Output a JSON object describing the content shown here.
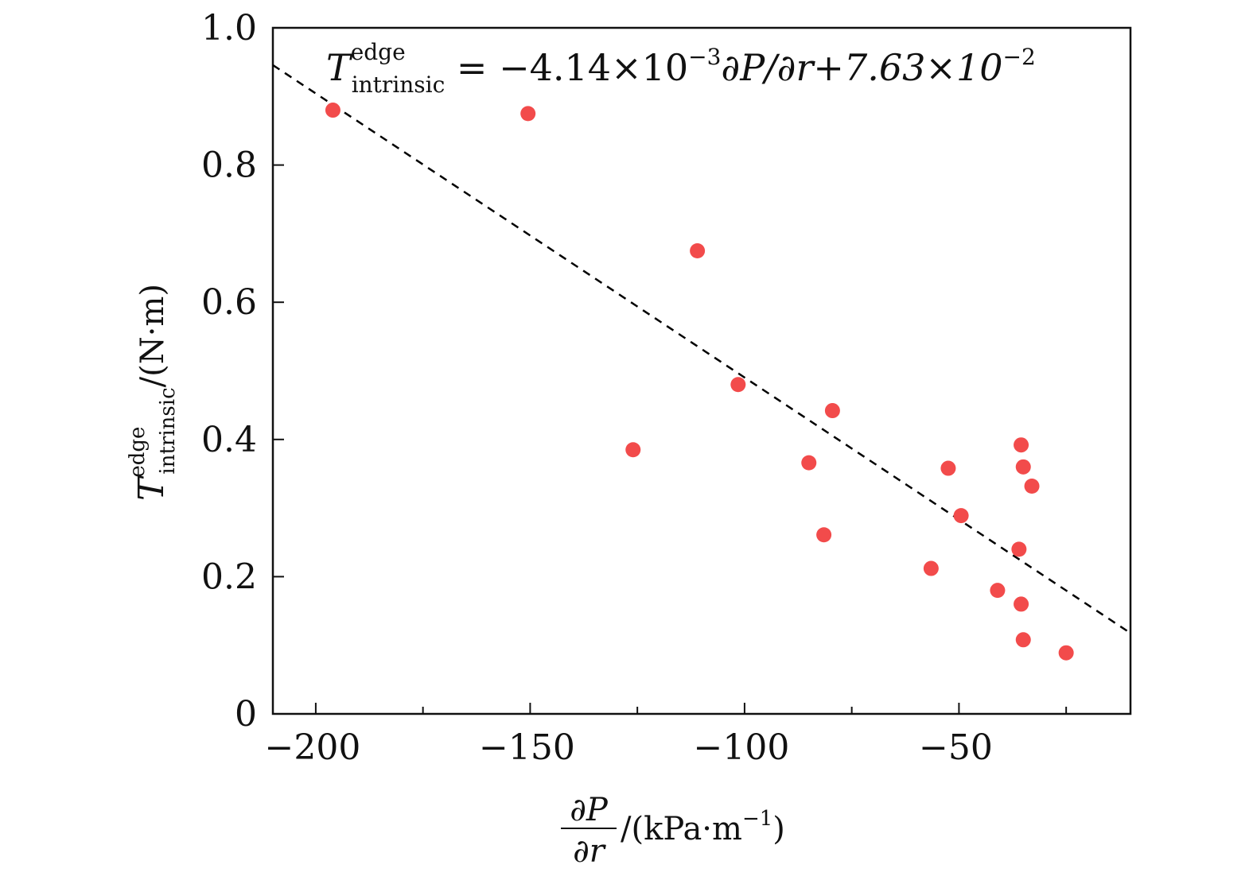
{
  "chart_data": {
    "type": "scatter",
    "title": "",
    "annotation": {
      "T": "T",
      "sup": "edge",
      "sub": "intrinsic",
      "eq_pre": " = −4.14×10",
      "eq_exp1": "−3",
      "eq_mid": "∂P/∂r+7.63×10",
      "eq_exp2": "−2"
    },
    "fit_line": {
      "slope": -0.00414,
      "intercept": 0.0763,
      "style": "dashed",
      "color": "#000000"
    },
    "xlabel": {
      "num": "∂P",
      "den": "∂r",
      "units_pre": "/(kPa·m",
      "units_exp": "−1",
      "units_post": ")"
    },
    "ylabel": {
      "T": "T",
      "sup": "edge",
      "sub": "intrinsic",
      "units": "/(N·m)"
    },
    "xlim": [
      -210,
      -10
    ],
    "ylim": [
      0,
      1.0
    ],
    "x_major_ticks": [
      -200,
      -150,
      -100,
      -50
    ],
    "x_minor_ticks": [
      -175,
      -125,
      -75,
      -25
    ],
    "x_tick_labels": [
      "−200",
      "−150",
      "−100",
      "−50"
    ],
    "y_ticks": [
      0,
      0.2,
      0.4,
      0.6,
      0.8,
      1.0
    ],
    "y_tick_labels": [
      "0",
      "0.2",
      "0.4",
      "0.6",
      "0.8",
      "1.0"
    ],
    "marker_color": "#f24b4b",
    "grid": false,
    "series": [
      {
        "x": [
          -196,
          -150.5,
          -111,
          -101.5,
          -126,
          -79.5,
          -85,
          -81.5,
          -52.5,
          -49.5,
          -56.5,
          -35.5,
          -35,
          -33,
          -36,
          -41,
          -35.5,
          -35,
          -25
        ],
        "y": [
          0.88,
          0.875,
          0.675,
          0.48,
          0.385,
          0.442,
          0.366,
          0.261,
          0.358,
          0.289,
          0.212,
          0.392,
          0.36,
          0.332,
          0.24,
          0.18,
          0.16,
          0.108,
          0.089
        ]
      }
    ]
  }
}
